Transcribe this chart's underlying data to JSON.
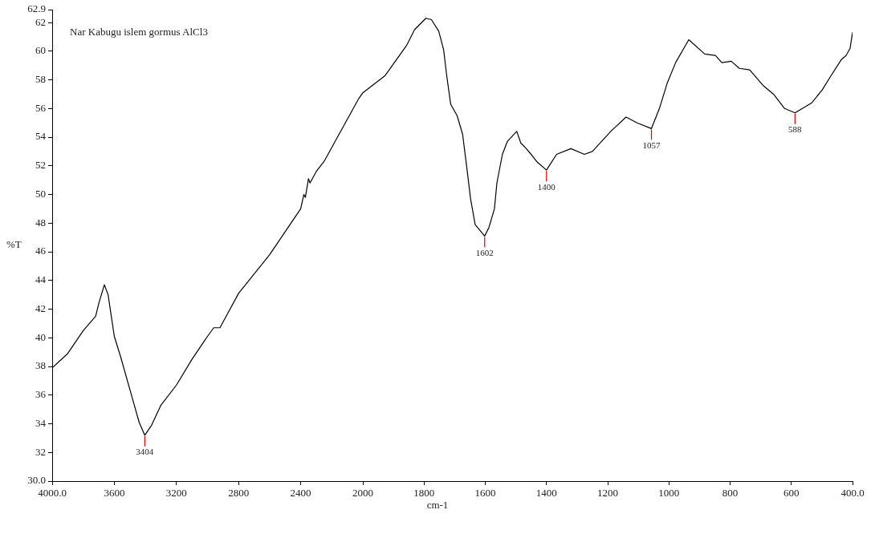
{
  "chart_data": [
    {
      "type": "line",
      "title": "Nar Kabugu islem gormus AlCl3",
      "ylabel": "%T",
      "x": [
        4000,
        3900,
        3800,
        3720,
        3700,
        3664,
        3640,
        3600,
        3560,
        3500,
        3440,
        3404,
        3360,
        3300,
        3200,
        3100,
        3000,
        2960,
        2920,
        2880,
        2800,
        2600,
        2400,
        2380,
        2370,
        2350,
        2340,
        2300,
        2250,
        2026,
        2000
      ],
      "series": [
        {
          "color": "#000000",
          "values": [
            37.9,
            38.9,
            40.5,
            41.5,
            42.4,
            43.7,
            43.0,
            40.1,
            38.7,
            36.4,
            34.1,
            33.2,
            33.9,
            35.3,
            36.7,
            38.5,
            40.1,
            40.7,
            40.7,
            41.5,
            43.1,
            45.8,
            49.0,
            50.0,
            49.8,
            51.1,
            50.8,
            51.6,
            52.3,
            56.7,
            57.1
          ]
        }
      ],
      "xlim": [
        4000,
        2000
      ],
      "xticks": [
        {
          "value": 4000,
          "label": "4000.0"
        },
        3600,
        3200,
        2800,
        2400,
        2000
      ],
      "ylim": [
        30,
        62.9
      ],
      "yticks": [
        {
          "value": 30,
          "label": "30.0"
        },
        32,
        34,
        36,
        38,
        40,
        42,
        44,
        46,
        48,
        50,
        52,
        54,
        56,
        58,
        60,
        62,
        {
          "value": 62.9,
          "label": "62.9"
        }
      ],
      "annotations": [
        {
          "text": "3404",
          "x": 3404,
          "y": 33.2
        }
      ],
      "grid": false,
      "legend": false,
      "marker": "none",
      "line_style": "solid"
    },
    {
      "type": "line",
      "xlabel": "cm-1",
      "x": [
        2000,
        1927,
        1857,
        1831,
        1794,
        1776,
        1752,
        1736,
        1726,
        1713,
        1692,
        1674,
        1661,
        1648,
        1633,
        1602,
        1588,
        1570,
        1562,
        1544,
        1528,
        1515,
        1497,
        1484,
        1466,
        1450,
        1432,
        1400,
        1367,
        1320,
        1276,
        1250,
        1190,
        1140,
        1104,
        1057,
        1031,
        1005,
        978,
        935,
        883,
        848,
        827,
        796,
        770,
        736,
        692,
        658,
        622,
        588,
        533,
        499,
        473,
        437,
        421,
        408,
        400
      ],
      "series": [
        {
          "color": "#000000",
          "values": [
            57.1,
            58.3,
            60.4,
            61.5,
            62.3,
            62.2,
            61.4,
            60.1,
            58.3,
            56.3,
            55.5,
            54.2,
            52.0,
            49.7,
            47.9,
            47.1,
            47.7,
            49.0,
            50.8,
            52.8,
            53.7,
            54.0,
            54.4,
            53.6,
            53.2,
            52.8,
            52.3,
            51.7,
            52.8,
            53.2,
            52.8,
            53.0,
            54.4,
            55.4,
            55.0,
            54.6,
            56.0,
            57.8,
            59.2,
            60.8,
            59.8,
            59.7,
            59.2,
            59.3,
            58.8,
            58.7,
            57.6,
            57.0,
            56.0,
            55.7,
            56.4,
            57.3,
            58.2,
            59.4,
            59.7,
            60.2,
            61.3
          ]
        }
      ],
      "xlim": [
        2000,
        400
      ],
      "xticks": [
        1800,
        1600,
        1400,
        1200,
        1000,
        800,
        600,
        {
          "value": 400,
          "label": "400.0"
        }
      ],
      "ylim": [
        30,
        62.9
      ],
      "tick_labels": "x",
      "annotations": [
        {
          "text": "1602",
          "x": 1602,
          "y": 47.1
        },
        {
          "text": "1400",
          "x": 1400,
          "y": 51.7
        },
        {
          "text": "1057",
          "x": 1057,
          "y": 54.6
        },
        {
          "text": "588",
          "x": 588,
          "y": 55.7
        }
      ],
      "grid": false,
      "legend": false,
      "marker": "none",
      "line_style": "solid"
    }
  ]
}
